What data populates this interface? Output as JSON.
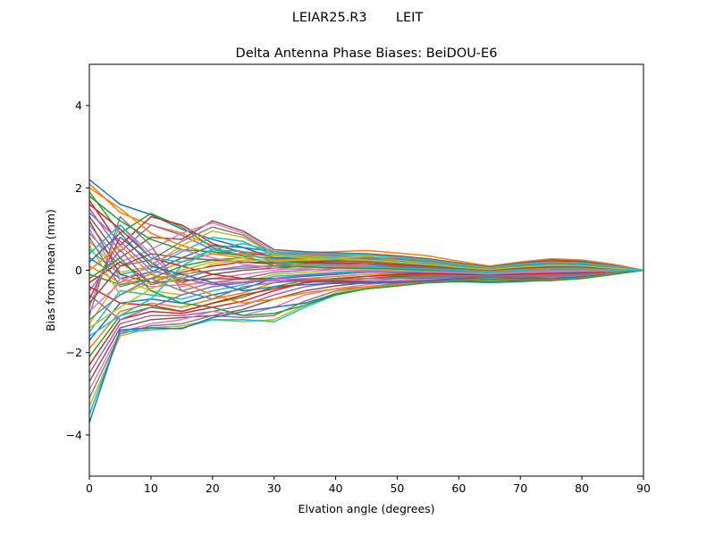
{
  "suptitle": "LEIAR25.R3       LEIT",
  "chart_data": {
    "type": "line",
    "title": "Delta Antenna Phase Biases: BeiDOU-E6",
    "xlabel": "Elvation angle (degrees)",
    "ylabel": "Bias from mean (mm)",
    "xlim": [
      0,
      90
    ],
    "ylim": [
      -5,
      5
    ],
    "xticks": [
      0,
      10,
      20,
      30,
      40,
      50,
      60,
      70,
      80,
      90
    ],
    "xtick_labels": [
      "0",
      "10",
      "20",
      "30",
      "40",
      "50",
      "60",
      "70",
      "80",
      "90"
    ],
    "yticks": [
      -4,
      -2,
      0,
      2,
      4
    ],
    "ytick_labels": [
      "−4",
      "−2",
      "0",
      "2",
      "4"
    ],
    "grid": false,
    "colors": [
      "#1f77b4",
      "#ff7f0e",
      "#2ca02c",
      "#d62728",
      "#9467bd",
      "#8c564b",
      "#e377c2",
      "#7f7f7f",
      "#bcbd22",
      "#17becf"
    ],
    "x": [
      0,
      5,
      10,
      15,
      20,
      25,
      30,
      35,
      40,
      45,
      50,
      55,
      60,
      65,
      70,
      75,
      80,
      85,
      90
    ],
    "series": [
      {
        "name": "s1",
        "values": [
          2.2,
          1.6,
          1.35,
          1.0,
          0.75,
          0.55,
          0.45,
          0.4,
          0.35,
          0.3,
          0.25,
          0.2,
          0.1,
          0.05,
          0.15,
          0.2,
          0.18,
          0.1,
          0.0
        ]
      },
      {
        "name": "s2",
        "values": [
          2.1,
          1.4,
          1.1,
          0.9,
          0.6,
          0.45,
          0.4,
          0.42,
          0.45,
          0.48,
          0.42,
          0.35,
          0.22,
          0.1,
          0.2,
          0.28,
          0.25,
          0.15,
          0.0
        ]
      },
      {
        "name": "s3",
        "values": [
          1.9,
          0.9,
          1.38,
          1.05,
          0.55,
          0.35,
          0.3,
          0.3,
          0.28,
          0.25,
          0.2,
          0.15,
          0.08,
          0.03,
          0.12,
          0.18,
          0.16,
          0.08,
          0.0
        ]
      },
      {
        "name": "s4",
        "values": [
          1.7,
          0.6,
          1.3,
          1.1,
          0.65,
          0.42,
          0.35,
          0.33,
          0.3,
          0.28,
          0.22,
          0.18,
          0.1,
          0.05,
          0.15,
          0.22,
          0.2,
          0.1,
          0.0
        ]
      },
      {
        "name": "s5",
        "values": [
          1.5,
          0.45,
          1.1,
          0.85,
          0.5,
          0.35,
          0.28,
          0.26,
          0.25,
          0.22,
          0.18,
          0.12,
          0.06,
          0.02,
          0.1,
          0.15,
          0.14,
          0.07,
          0.0
        ]
      },
      {
        "name": "s6",
        "values": [
          1.3,
          0.3,
          0.8,
          0.75,
          1.2,
          0.95,
          0.5,
          0.45,
          0.42,
          0.4,
          0.35,
          0.28,
          0.18,
          0.08,
          0.18,
          0.25,
          0.22,
          0.12,
          0.0
        ]
      },
      {
        "name": "s7",
        "values": [
          1.1,
          0.2,
          0.5,
          0.9,
          1.15,
          0.9,
          0.45,
          0.4,
          0.38,
          0.36,
          0.3,
          0.22,
          0.12,
          0.05,
          0.14,
          0.2,
          0.18,
          0.1,
          0.0
        ]
      },
      {
        "name": "s8",
        "values": [
          0.9,
          0.1,
          0.25,
          0.7,
          1.05,
          0.85,
          0.4,
          0.38,
          0.35,
          0.32,
          0.26,
          0.2,
          0.1,
          0.04,
          0.12,
          0.18,
          0.16,
          0.08,
          0.0
        ]
      },
      {
        "name": "s9",
        "values": [
          0.7,
          -0.05,
          0.1,
          0.6,
          0.95,
          0.8,
          0.38,
          0.35,
          0.32,
          0.3,
          0.24,
          0.18,
          0.1,
          0.04,
          0.1,
          0.16,
          0.15,
          0.08,
          0.0
        ]
      },
      {
        "name": "s10",
        "values": [
          0.5,
          -0.1,
          0.05,
          0.45,
          0.8,
          0.7,
          0.35,
          0.32,
          0.3,
          0.28,
          0.22,
          0.16,
          0.08,
          0.03,
          0.1,
          0.15,
          0.14,
          0.07,
          0.0
        ]
      },
      {
        "name": "s11",
        "values": [
          0.3,
          -0.2,
          -0.05,
          0.3,
          0.6,
          0.55,
          0.3,
          0.3,
          0.28,
          0.26,
          0.2,
          0.15,
          0.07,
          0.02,
          0.08,
          0.12,
          0.12,
          0.06,
          0.0
        ]
      },
      {
        "name": "s12",
        "values": [
          0.1,
          -0.3,
          -0.1,
          0.2,
          0.4,
          0.4,
          0.25,
          0.26,
          0.25,
          0.22,
          0.18,
          0.12,
          0.06,
          0.02,
          0.07,
          0.1,
          0.1,
          0.05,
          0.0
        ]
      },
      {
        "name": "s13",
        "values": [
          -0.1,
          -0.35,
          -0.2,
          0.1,
          0.25,
          0.3,
          0.2,
          0.22,
          0.22,
          0.2,
          0.15,
          0.1,
          0.05,
          0.0,
          0.05,
          0.08,
          0.08,
          0.04,
          0.0
        ]
      },
      {
        "name": "s14",
        "values": [
          -0.3,
          0.2,
          -0.3,
          -0.05,
          0.1,
          0.2,
          0.15,
          0.18,
          0.18,
          0.16,
          0.12,
          0.08,
          0.03,
          -0.02,
          0.03,
          0.06,
          0.06,
          0.03,
          0.0
        ]
      },
      {
        "name": "s15",
        "values": [
          -0.5,
          0.5,
          -0.35,
          -0.2,
          0.0,
          0.1,
          0.1,
          0.14,
          0.15,
          0.14,
          0.1,
          0.06,
          0.02,
          -0.03,
          0.02,
          0.04,
          0.05,
          0.02,
          0.0
        ]
      },
      {
        "name": "s16",
        "values": [
          -0.7,
          0.8,
          0.2,
          -0.3,
          -0.1,
          0.0,
          0.05,
          0.1,
          0.12,
          0.1,
          0.08,
          0.04,
          0.0,
          -0.05,
          0.0,
          0.02,
          0.03,
          0.01,
          0.0
        ]
      },
      {
        "name": "s17",
        "values": [
          -0.9,
          1.1,
          0.4,
          -0.4,
          -0.2,
          -0.1,
          0.0,
          0.05,
          0.08,
          0.08,
          0.05,
          0.02,
          -0.02,
          -0.06,
          -0.02,
          0.0,
          0.01,
          0.0,
          0.0
        ]
      },
      {
        "name": "s18",
        "values": [
          -1.1,
          1.3,
          0.6,
          -0.5,
          -0.3,
          -0.2,
          -0.05,
          0.0,
          0.05,
          0.05,
          0.02,
          0.0,
          -0.04,
          -0.08,
          -0.04,
          -0.02,
          -0.01,
          0.0,
          0.0
        ]
      },
      {
        "name": "s19",
        "values": [
          -1.3,
          -0.2,
          -0.5,
          -0.6,
          -0.4,
          -0.3,
          -0.1,
          -0.05,
          0.0,
          0.02,
          0.0,
          -0.02,
          -0.06,
          -0.1,
          -0.06,
          -0.04,
          -0.03,
          -0.01,
          0.0
        ]
      },
      {
        "name": "s20",
        "values": [
          -1.5,
          -0.5,
          -0.6,
          -0.7,
          -0.5,
          -0.35,
          -0.15,
          -0.1,
          -0.05,
          -0.02,
          -0.03,
          -0.05,
          -0.08,
          -0.12,
          -0.08,
          -0.06,
          -0.04,
          -0.02,
          0.0
        ]
      },
      {
        "name": "s21",
        "values": [
          -1.7,
          -0.8,
          -0.7,
          -0.8,
          -0.6,
          -0.45,
          -0.2,
          -0.15,
          -0.1,
          -0.05,
          -0.05,
          -0.08,
          -0.1,
          -0.14,
          -0.1,
          -0.08,
          -0.06,
          -0.03,
          0.0
        ]
      },
      {
        "name": "s22",
        "values": [
          -1.9,
          -1.0,
          -0.8,
          -0.9,
          -0.7,
          -0.55,
          -0.3,
          -0.2,
          -0.15,
          -0.1,
          -0.08,
          -0.1,
          -0.12,
          -0.15,
          -0.12,
          -0.1,
          -0.07,
          -0.03,
          0.0
        ]
      },
      {
        "name": "s23",
        "values": [
          -2.1,
          -1.1,
          -0.9,
          -1.0,
          -0.8,
          -0.65,
          -0.4,
          -0.25,
          -0.2,
          -0.15,
          -0.12,
          -0.12,
          -0.14,
          -0.17,
          -0.14,
          -0.12,
          -0.08,
          -0.04,
          0.0
        ]
      },
      {
        "name": "s24",
        "values": [
          -2.3,
          -1.2,
          -1.0,
          -1.05,
          -0.9,
          -0.75,
          -0.5,
          -0.3,
          -0.25,
          -0.2,
          -0.15,
          -0.15,
          -0.16,
          -0.18,
          -0.16,
          -0.14,
          -0.1,
          -0.05,
          0.0
        ]
      },
      {
        "name": "s25",
        "values": [
          -2.5,
          -1.3,
          -1.1,
          -1.1,
          -1.0,
          -0.85,
          -0.6,
          -0.4,
          -0.3,
          -0.25,
          -0.2,
          -0.18,
          -0.18,
          -0.2,
          -0.18,
          -0.15,
          -0.12,
          -0.06,
          0.0
        ]
      },
      {
        "name": "s26",
        "values": [
          -2.7,
          -1.4,
          -1.2,
          -1.15,
          -1.1,
          -0.95,
          -0.7,
          -0.5,
          -0.38,
          -0.3,
          -0.25,
          -0.2,
          -0.2,
          -0.22,
          -0.2,
          -0.17,
          -0.14,
          -0.07,
          0.0
        ]
      },
      {
        "name": "s27",
        "values": [
          -2.9,
          -1.5,
          -1.3,
          -1.2,
          -1.0,
          -1.1,
          -0.9,
          -0.6,
          -0.45,
          -0.35,
          -0.28,
          -0.22,
          -0.22,
          -0.24,
          -0.22,
          -0.18,
          -0.15,
          -0.08,
          0.0
        ]
      },
      {
        "name": "s28",
        "values": [
          -3.1,
          -1.55,
          -1.35,
          -1.3,
          -1.1,
          -1.15,
          -1.1,
          -0.75,
          -0.5,
          -0.4,
          -0.32,
          -0.25,
          -0.24,
          -0.26,
          -0.24,
          -0.2,
          -0.16,
          -0.08,
          0.0
        ]
      },
      {
        "name": "s29",
        "values": [
          -3.3,
          -1.6,
          -1.4,
          -1.35,
          -1.2,
          -1.25,
          -1.2,
          -0.85,
          -0.55,
          -0.42,
          -0.35,
          -0.28,
          -0.26,
          -0.28,
          -0.26,
          -0.22,
          -0.18,
          -0.09,
          0.0
        ]
      },
      {
        "name": "s30",
        "values": [
          -3.5,
          -1.5,
          -1.45,
          -1.4,
          -1.2,
          -1.2,
          -1.25,
          -0.9,
          -0.6,
          -0.45,
          -0.38,
          -0.3,
          -0.28,
          -0.3,
          -0.28,
          -0.24,
          -0.2,
          -0.1,
          0.0
        ]
      },
      {
        "name": "s31",
        "values": [
          -3.7,
          -1.45,
          -1.4,
          -1.42,
          -1.15,
          -1.0,
          -0.9,
          -0.8,
          -0.58,
          -0.45,
          -0.38,
          -0.3,
          -0.27,
          -0.29,
          -0.27,
          -0.23,
          -0.19,
          -0.09,
          0.0
        ]
      },
      {
        "name": "s32",
        "values": [
          2.0,
          1.5,
          0.9,
          0.6,
          0.4,
          0.3,
          0.15,
          0.12,
          0.1,
          0.08,
          0.05,
          0.03,
          0.0,
          -0.03,
          0.02,
          0.05,
          0.05,
          0.02,
          0.0
        ]
      },
      {
        "name": "s33",
        "values": [
          1.8,
          1.2,
          0.75,
          0.5,
          0.45,
          0.35,
          0.1,
          0.08,
          0.06,
          0.05,
          0.03,
          0.0,
          -0.02,
          -0.05,
          0.0,
          0.03,
          0.03,
          0.01,
          0.0
        ]
      },
      {
        "name": "s34",
        "values": [
          1.6,
          1.0,
          0.3,
          0.1,
          -0.1,
          -0.2,
          -0.2,
          -0.22,
          -0.25,
          -0.28,
          -0.3,
          -0.28,
          -0.25,
          -0.22,
          -0.25,
          -0.25,
          -0.2,
          -0.1,
          0.0
        ]
      },
      {
        "name": "s35",
        "values": [
          1.4,
          0.7,
          0.0,
          -0.2,
          -0.35,
          -0.3,
          -0.25,
          -0.28,
          -0.3,
          -0.32,
          -0.3,
          -0.27,
          -0.24,
          -0.2,
          -0.24,
          -0.24,
          -0.19,
          -0.09,
          0.0
        ]
      },
      {
        "name": "s36",
        "values": [
          1.2,
          -0.1,
          -0.3,
          -0.25,
          -0.2,
          -0.22,
          -0.2,
          -0.25,
          -0.28,
          -0.3,
          -0.28,
          -0.25,
          -0.22,
          -0.18,
          -0.22,
          -0.22,
          -0.18,
          -0.08,
          0.0
        ]
      },
      {
        "name": "s37",
        "values": [
          1.0,
          -0.2,
          -0.4,
          -0.35,
          -0.3,
          -0.28,
          -0.22,
          -0.2,
          -0.22,
          -0.25,
          -0.25,
          -0.22,
          -0.2,
          -0.17,
          -0.2,
          -0.2,
          -0.16,
          -0.08,
          0.0
        ]
      },
      {
        "name": "s38",
        "values": [
          0.8,
          -0.4,
          -0.2,
          -0.1,
          0.0,
          0.05,
          0.1,
          0.2,
          0.25,
          0.3,
          0.28,
          0.22,
          0.12,
          0.04,
          0.12,
          0.18,
          0.16,
          0.08,
          0.0
        ]
      },
      {
        "name": "s39",
        "values": [
          0.6,
          -0.6,
          -0.3,
          0.0,
          0.2,
          0.3,
          0.35,
          0.3,
          0.28,
          0.35,
          0.32,
          0.25,
          0.15,
          0.06,
          0.15,
          0.2,
          0.18,
          0.09,
          0.0
        ]
      },
      {
        "name": "s40",
        "values": [
          0.4,
          1.1,
          0.3,
          0.2,
          0.5,
          0.65,
          0.45,
          0.42,
          0.4,
          0.38,
          0.32,
          0.25,
          0.14,
          0.05,
          0.14,
          0.2,
          0.18,
          0.09,
          0.0
        ]
      },
      {
        "name": "s41",
        "values": [
          0.2,
          0.9,
          0.1,
          -0.1,
          -0.3,
          -0.5,
          -0.4,
          -0.35,
          -0.32,
          -0.3,
          -0.3,
          -0.25,
          -0.2,
          -0.18,
          -0.2,
          -0.2,
          -0.16,
          -0.08,
          0.0
        ]
      },
      {
        "name": "s42",
        "values": [
          0.0,
          0.6,
          -0.1,
          -0.3,
          -0.6,
          -0.8,
          -0.7,
          -0.55,
          -0.45,
          -0.4,
          -0.35,
          -0.3,
          -0.25,
          -0.2,
          -0.24,
          -0.24,
          -0.19,
          -0.09,
          0.0
        ]
      },
      {
        "name": "s43",
        "values": [
          -0.2,
          0.3,
          -0.5,
          -0.8,
          -0.9,
          -1.1,
          -1.05,
          -0.85,
          -0.6,
          -0.45,
          -0.38,
          -0.3,
          -0.26,
          -0.22,
          -0.25,
          -0.25,
          -0.2,
          -0.1,
          0.0
        ]
      },
      {
        "name": "s44",
        "values": [
          -0.4,
          -0.8,
          -0.85,
          -1.0,
          -0.8,
          -0.6,
          -0.45,
          -0.3,
          -0.2,
          -0.15,
          -0.1,
          -0.08,
          -0.1,
          -0.12,
          -0.1,
          -0.08,
          -0.06,
          -0.03,
          0.0
        ]
      },
      {
        "name": "s45",
        "values": [
          -0.6,
          -1.2,
          -0.9,
          -0.6,
          -0.4,
          -0.3,
          -0.2,
          -0.12,
          -0.08,
          -0.05,
          -0.03,
          -0.04,
          -0.06,
          -0.1,
          -0.06,
          -0.04,
          -0.03,
          -0.01,
          0.0
        ]
      },
      {
        "name": "s46",
        "values": [
          -0.8,
          0.1,
          0.4,
          0.3,
          0.25,
          0.2,
          0.18,
          0.2,
          0.22,
          0.2,
          0.15,
          0.1,
          0.05,
          0.0,
          0.05,
          0.08,
          0.08,
          0.04,
          0.0
        ]
      },
      {
        "name": "s47",
        "values": [
          -1.0,
          -0.3,
          0.15,
          0.5,
          0.3,
          0.15,
          0.05,
          0.02,
          0.0,
          0.0,
          -0.02,
          -0.03,
          -0.05,
          -0.08,
          -0.05,
          -0.03,
          -0.02,
          -0.01,
          0.0
        ]
      },
      {
        "name": "s48",
        "values": [
          -1.2,
          -0.6,
          -0.2,
          -0.5,
          -0.7,
          -0.4,
          -0.3,
          -0.25,
          -0.22,
          -0.2,
          -0.18,
          -0.15,
          -0.14,
          -0.14,
          -0.14,
          -0.12,
          -0.1,
          -0.05,
          0.0
        ]
      },
      {
        "name": "s49",
        "values": [
          -1.4,
          -0.9,
          -0.45,
          -0.15,
          0.15,
          0.25,
          0.22,
          0.25,
          0.28,
          0.25,
          0.2,
          0.14,
          0.07,
          0.02,
          0.08,
          0.12,
          0.11,
          0.05,
          0.0
        ]
      },
      {
        "name": "s50",
        "values": [
          -1.6,
          -1.1,
          -0.7,
          0.1,
          0.5,
          0.45,
          0.2,
          0.15,
          0.12,
          0.1,
          0.06,
          0.03,
          0.0,
          -0.04,
          0.0,
          0.03,
          0.03,
          0.01,
          0.0
        ]
      }
    ]
  }
}
